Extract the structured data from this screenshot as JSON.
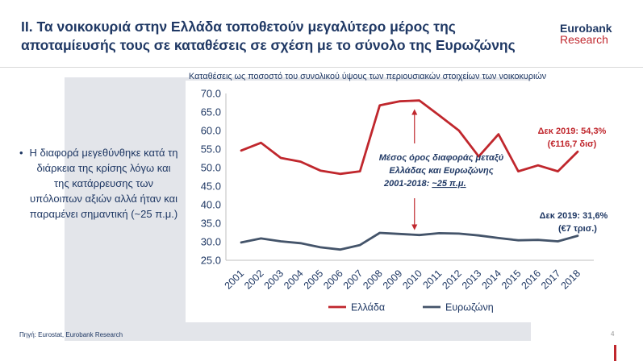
{
  "header": {
    "title_line1": "ΙΙ. Τα νοικοκυριά στην Ελλάδα τοποθετούν μεγαλύτερο μέρος της",
    "title_line2": "αποταμίευσής τους σε καταθέσεις σε σχέση με το σύνολο της Ευρωζώνης",
    "logo_line1": "Eurobank",
    "logo_line2": "Research"
  },
  "bullet": {
    "symbol": "•",
    "text": "Η διαφορά μεγεθύνθηκε κατά τη διάρκεια της κρίσης λόγω και της κατάρρευσης των υπόλοιπων αξιών αλλά ήταν και παραμένει σημαντική (~25 π.μ.)"
  },
  "footer": {
    "source": "Πηγή: Eurostat, Eurobank Research",
    "page_number": "4"
  },
  "chart_data": {
    "type": "line",
    "title": "Καταθέσεις ως ποσοστό του συνολικού ύψους των περιουσιακών στοιχείων των νοικοκυριών",
    "categories": [
      "2001",
      "2002",
      "2003",
      "2004",
      "2005",
      "2006",
      "2007",
      "2008",
      "2009",
      "2010",
      "2011",
      "2012",
      "2013",
      "2014",
      "2015",
      "2016",
      "2017",
      "2018"
    ],
    "ylim": [
      25.0,
      70.0
    ],
    "yticks": [
      "25.0",
      "30.0",
      "35.0",
      "40.0",
      "45.0",
      "50.0",
      "55.0",
      "60.0",
      "65.0",
      "70.0"
    ],
    "grid": false,
    "legend_position": "bottom",
    "series": [
      {
        "name": "Ελλάδα",
        "color": "#c0272d",
        "values": [
          54.6,
          56.7,
          52.6,
          51.6,
          49.2,
          48.3,
          49.0,
          66.8,
          67.9,
          68.1,
          64.1,
          60.0,
          53.0,
          59.0,
          49.0,
          50.6,
          49.0,
          54.3
        ]
      },
      {
        "name": "Ευρωζώνη",
        "color": "#44546a",
        "values": [
          29.8,
          30.9,
          30.1,
          29.6,
          28.5,
          27.9,
          29.1,
          32.4,
          32.1,
          31.8,
          32.3,
          32.2,
          31.7,
          31.0,
          30.4,
          30.5,
          30.1,
          31.6
        ]
      }
    ],
    "annotations": {
      "greece_end_line1": "Δεκ 2019: 54,3%",
      "greece_end_line2": "(€116,7 δισ)",
      "eurozone_end_line1": "Δεκ 2019: 31,6%",
      "eurozone_end_line2": "(€7 τρισ.)",
      "gap_line1": "Μέσος όρος διαφοράς μεταξύ",
      "gap_line2": "Ελλάδας και Ευρωζώνης",
      "gap_line3_prefix": "2001-2018: ",
      "gap_line3_value": "~25 π.μ."
    }
  }
}
